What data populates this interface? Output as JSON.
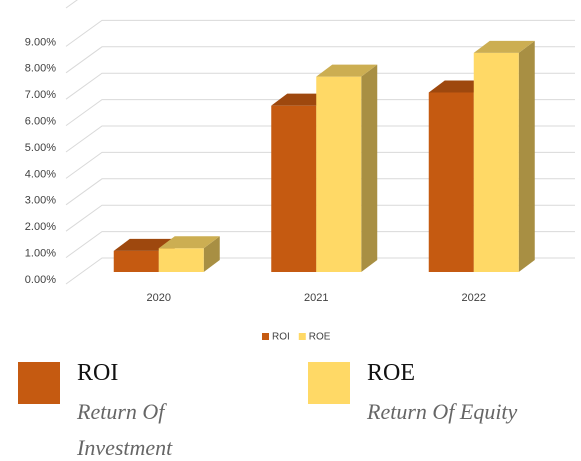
{
  "chart_data": {
    "type": "bar3d",
    "categories": [
      "2020",
      "2021",
      "2022"
    ],
    "series": [
      {
        "name": "ROI",
        "description": "Return Of Investment",
        "color": "#c55a11",
        "values": [
          0.8,
          6.3,
          6.8
        ]
      },
      {
        "name": "ROE",
        "description": "Return Of Equity",
        "color": "#ffd966",
        "values": [
          0.9,
          7.4,
          8.3
        ]
      }
    ],
    "ylim": [
      0,
      10
    ],
    "yticks": [
      {
        "value": 0,
        "label": "0.00%"
      },
      {
        "value": 1,
        "label": "1.00%"
      },
      {
        "value": 2,
        "label": "2.00%"
      },
      {
        "value": 3,
        "label": "3.00%"
      },
      {
        "value": 4,
        "label": "4.00%"
      },
      {
        "value": 5,
        "label": "5.00%"
      },
      {
        "value": 6,
        "label": "6.00%"
      },
      {
        "value": 7,
        "label": "7.00%"
      },
      {
        "value": 8,
        "label": "8.00%"
      },
      {
        "value": 9,
        "label": "9.00%"
      }
    ],
    "grid": true,
    "legend": "bottom"
  }
}
